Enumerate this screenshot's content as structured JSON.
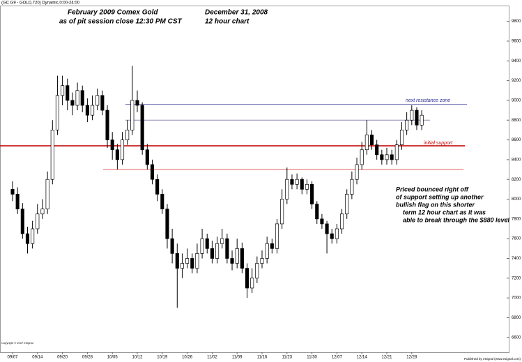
{
  "chart_data": {
    "type": "candlestick",
    "symbol": "(GC G9 - GOLD,720) Dynamic,0:00-24:00",
    "title": "February 2009 Comex Gold",
    "subtitle": "as of pit session close 12:30 PM CST",
    "date": "December 31, 2008",
    "period": "12 hour chart",
    "copyright": "Copyright © 2007 eSignal",
    "publisher": "Published by eSignal (www.esignal.com)",
    "annotations": {
      "resistance": "next resistance zone",
      "support": "initial support",
      "comment": [
        "Priced bounced right off",
        "of support setting up another",
        "bullish flag on this shorter",
        "term 12 hour chart as it was",
        "able to break through the $880 level"
      ]
    },
    "levels": [
      {
        "value": 8960,
        "color": "#6a6ab0"
      },
      {
        "value": 8800,
        "color": "#8a8ab8"
      },
      {
        "value": 8540,
        "color": "#c00000"
      },
      {
        "value": 8300,
        "color": "#e06060"
      }
    ],
    "categories": [
      "09/07",
      null,
      null,
      null,
      null,
      "09/14",
      null,
      null,
      null,
      null,
      "09/20",
      null,
      null,
      null,
      null,
      "09/28",
      null,
      null,
      null,
      null,
      "10/05",
      null,
      null,
      null,
      null,
      "10/12",
      null,
      null,
      null,
      null,
      "10/19",
      null,
      null,
      null,
      null,
      "10/26",
      null,
      null,
      null,
      null,
      "11/02",
      null,
      null,
      null,
      null,
      "11/09",
      null,
      null,
      null,
      null,
      "11/16",
      null,
      null,
      null,
      null,
      "11/23",
      null,
      null,
      null,
      null,
      "11/30",
      null,
      null,
      null,
      null,
      "12/07",
      null,
      null,
      null,
      null,
      "12/14",
      null,
      null,
      null,
      null,
      "12/21",
      null,
      null,
      null,
      null,
      "12/28",
      null,
      null
    ],
    "open": [
      8100,
      8050,
      7900,
      7650,
      7550,
      7700,
      7850,
      7900,
      8200,
      8700,
      9050,
      9150,
      9000,
      8950,
      9100,
      8950,
      8850,
      8950,
      9050,
      8900,
      8600,
      8500,
      8400,
      8600,
      8700,
      9000,
      8950,
      8500,
      8350,
      8200,
      8050,
      7900,
      7600,
      7450,
      7300,
      7350,
      7400,
      7300,
      7450,
      7600,
      7500,
      7400,
      7550,
      7600,
      7400,
      7350,
      7500,
      7300,
      7100,
      7200,
      7350,
      7400,
      7550,
      7500,
      7750,
      8000,
      8200,
      8150,
      8200,
      8100,
      8150,
      7950,
      7800,
      7750,
      7650,
      7600,
      7700,
      7850,
      8050,
      8200,
      8350,
      8500,
      8650,
      8550,
      8450,
      8400,
      8450,
      8400,
      8550,
      8700,
      8800,
      8900,
      8750
    ],
    "high": [
      8180,
      8120,
      7960,
      7720,
      7780,
      7950,
      8000,
      8280,
      8800,
      9250,
      9250,
      9220,
      9080,
      9180,
      9150,
      9020,
      9050,
      9120,
      9100,
      8950,
      8680,
      8560,
      8680,
      8800,
      9350,
      9100,
      8980,
      8560,
      8400,
      8250,
      8100,
      7950,
      7700,
      7550,
      7450,
      7500,
      7450,
      7550,
      7700,
      7650,
      7580,
      7620,
      7700,
      7650,
      7480,
      7600,
      7560,
      7350,
      7300,
      7420,
      7480,
      7620,
      7600,
      7800,
      8100,
      8320,
      8250,
      8260,
      8220,
      8200,
      8180,
      7980,
      7850,
      7780,
      7700,
      7750,
      7900,
      8100,
      8280,
      8420,
      8580,
      8800,
      8700,
      8600,
      8500,
      8520,
      8500,
      8600,
      8780,
      8880,
      8950,
      8930,
      8900
    ],
    "low": [
      7980,
      7850,
      7600,
      7450,
      7500,
      7650,
      7800,
      7850,
      8150,
      8650,
      8950,
      8900,
      8850,
      8900,
      8880,
      8780,
      8800,
      8900,
      8850,
      8520,
      8400,
      8300,
      8350,
      8550,
      8650,
      8880,
      8450,
      8300,
      8150,
      7980,
      7850,
      7500,
      7350,
      6900,
      7200,
      7300,
      7250,
      7250,
      7400,
      7450,
      7350,
      7350,
      7500,
      7350,
      7280,
      7300,
      7250,
      7000,
      7050,
      7150,
      7300,
      7350,
      7450,
      7450,
      7700,
      7950,
      8100,
      8100,
      8050,
      8050,
      7900,
      7750,
      7700,
      7450,
      7550,
      7550,
      7650,
      7800,
      8000,
      8150,
      8300,
      8450,
      8500,
      8400,
      8350,
      8350,
      8350,
      8350,
      8500,
      8650,
      8750,
      8700,
      8700
    ],
    "close": [
      8050,
      7900,
      7650,
      7550,
      7700,
      7850,
      7900,
      8200,
      8700,
      9050,
      9150,
      9000,
      8950,
      9100,
      8950,
      8850,
      8950,
      9050,
      8900,
      8600,
      8500,
      8400,
      8600,
      8700,
      9000,
      8950,
      8500,
      8350,
      8200,
      8050,
      7900,
      7600,
      7450,
      7300,
      7350,
      7400,
      7300,
      7450,
      7600,
      7500,
      7400,
      7550,
      7600,
      7400,
      7350,
      7500,
      7300,
      7100,
      7200,
      7350,
      7400,
      7550,
      7500,
      7750,
      8000,
      8200,
      8150,
      8200,
      8100,
      8150,
      7950,
      7800,
      7750,
      7650,
      7600,
      7700,
      7850,
      8050,
      8200,
      8350,
      8500,
      8650,
      8550,
      8450,
      8400,
      8450,
      8400,
      8550,
      8700,
      8800,
      8900,
      8750,
      8850
    ],
    "ylim": [
      6450,
      9960
    ],
    "yticks": [
      6600,
      6800,
      7000,
      7200,
      7400,
      7600,
      7800,
      8000,
      8200,
      8400,
      8600,
      8800,
      9000,
      9200,
      9400,
      9600,
      9800
    ],
    "up_color": "#ffffff",
    "down_color": "#000000"
  }
}
